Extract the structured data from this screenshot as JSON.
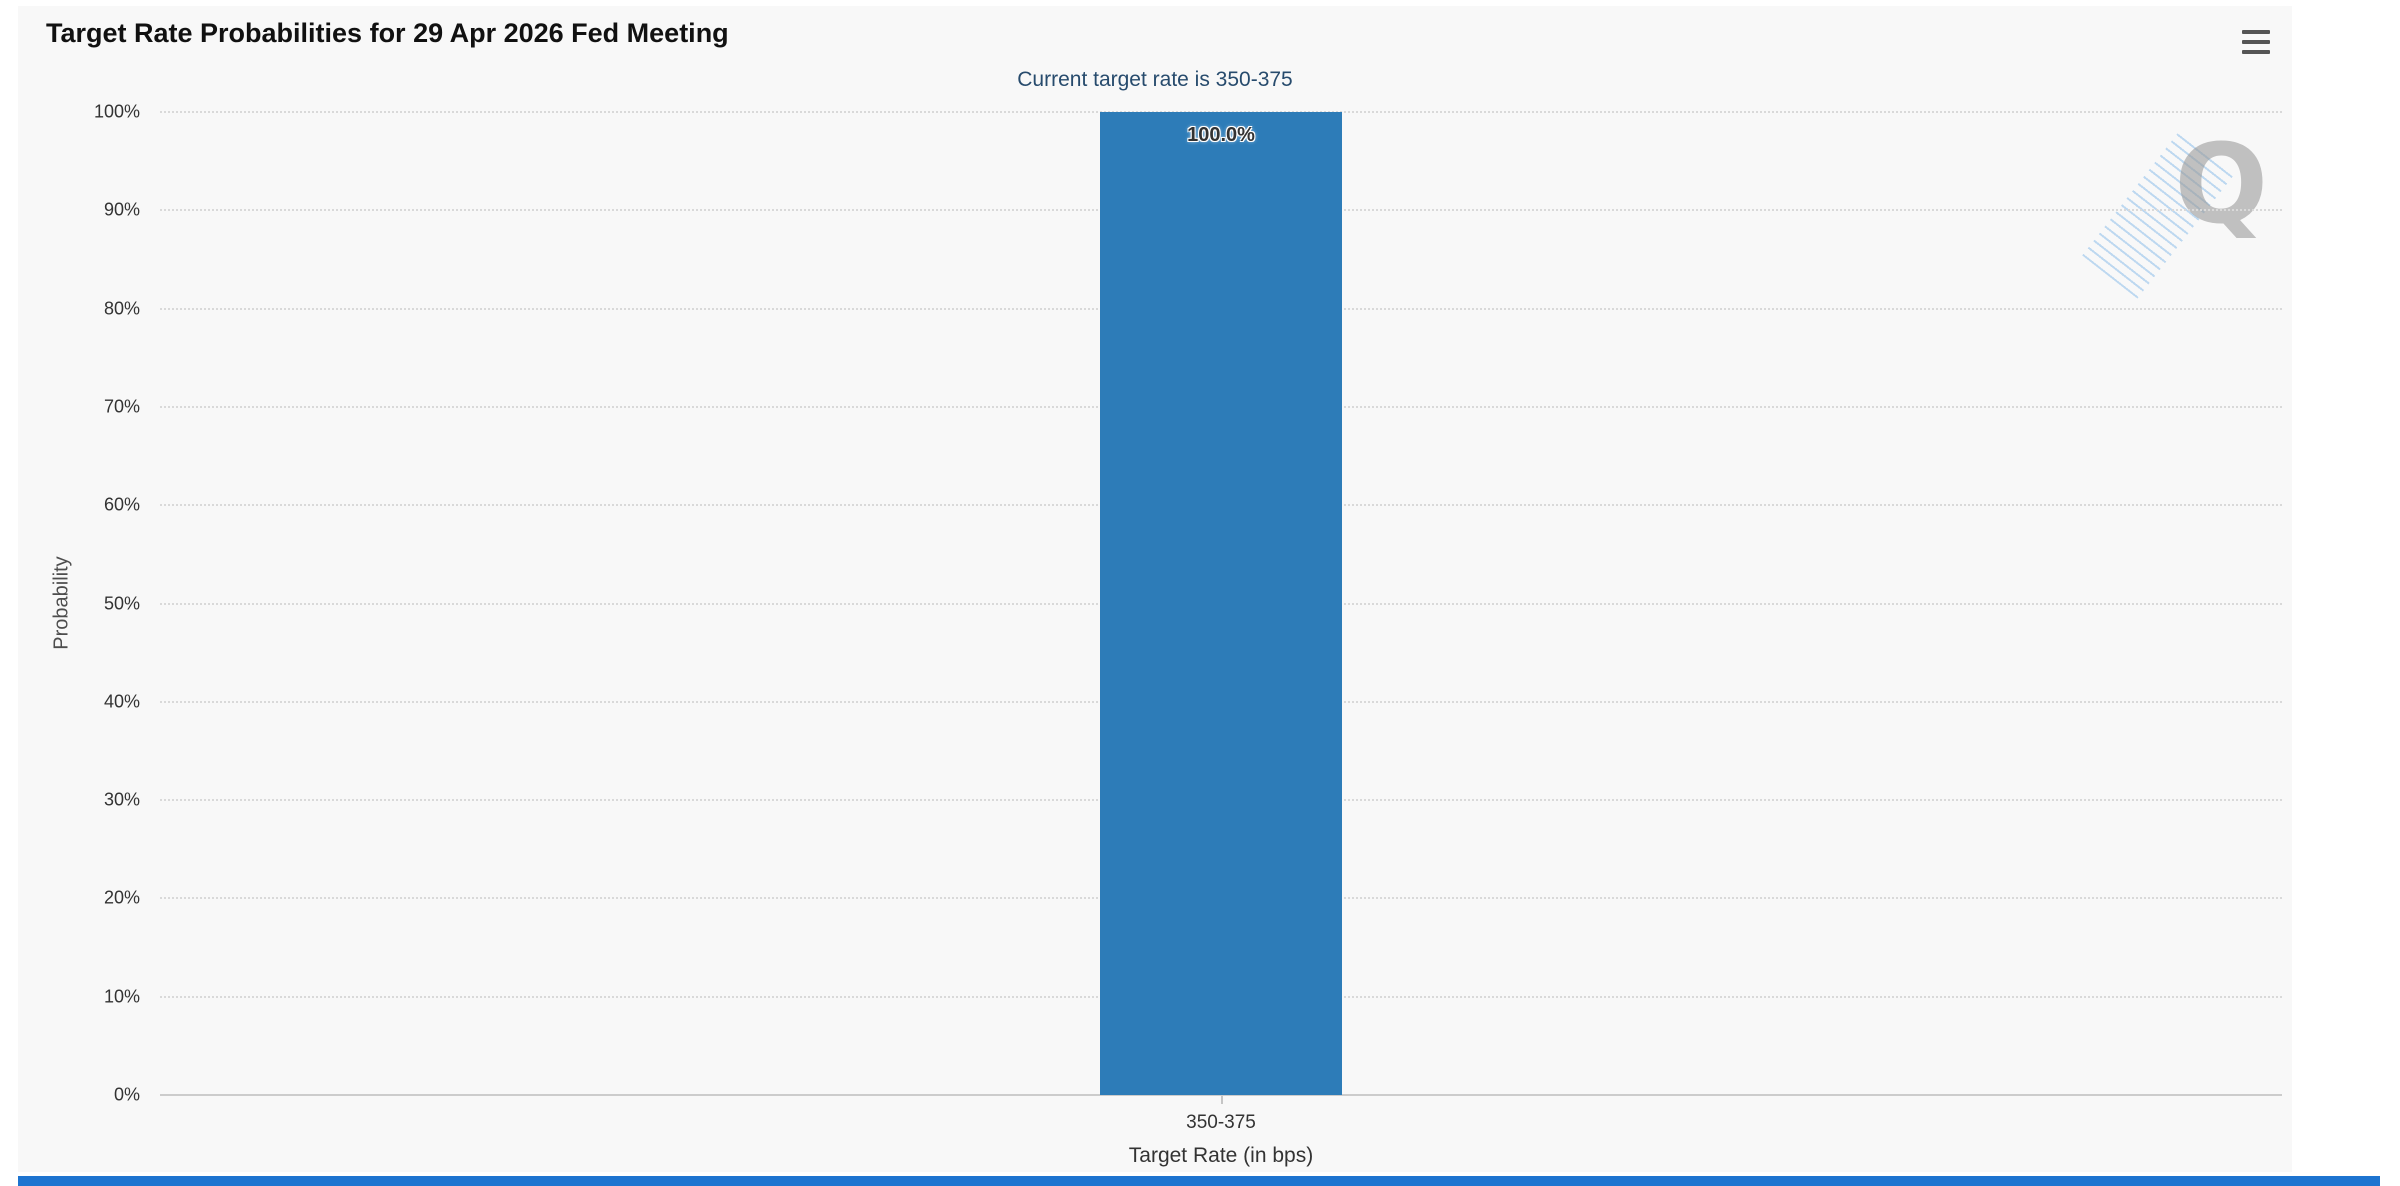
{
  "header": {
    "title": "Target Rate Probabilities for 29 Apr 2026 Fed Meeting"
  },
  "chart_data": {
    "type": "bar",
    "title": "Target Rate Probabilities for 29 Apr 2026 Fed Meeting",
    "subtitle": "Current target rate is 350-375",
    "categories": [
      "350-375"
    ],
    "values": [
      100.0
    ],
    "data_labels": [
      "100.0%"
    ],
    "xlabel": "Target Rate (in bps)",
    "ylabel": "Probability",
    "ylim": [
      0,
      100
    ],
    "y_ticks": [
      "0%",
      "10%",
      "20%",
      "30%",
      "40%",
      "50%",
      "60%",
      "70%",
      "80%",
      "90%",
      "100%"
    ],
    "grid": true,
    "legend": "none",
    "bar_color": "#2d7cb8",
    "subtitle_color": "#274b6d",
    "watermark": "Q"
  },
  "footer_strip": {
    "color": "#1d74d0"
  }
}
